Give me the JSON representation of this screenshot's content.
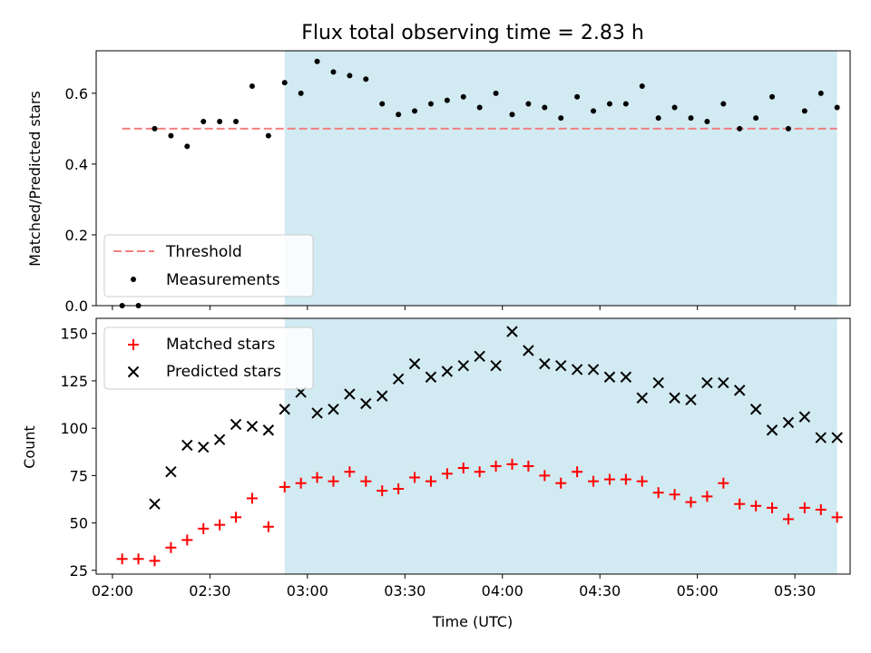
{
  "title": "Flux total observing time = 2.83 h",
  "colors": {
    "threshold": "#f08080",
    "measurement": "#000000",
    "matched": "#ff0000",
    "predicted": "#000000",
    "shade": "#add8e6"
  },
  "chart_data": [
    {
      "type": "scatter",
      "ylabel": "Matched/Predicted stars",
      "xlabel": "",
      "ylim": [
        0,
        0.72
      ],
      "yticks": [
        0.0,
        0.2,
        0.4,
        0.6
      ],
      "ytick_labels": [
        "0.0",
        "0.2",
        "0.4",
        "0.6"
      ],
      "shaded_interval": [
        "02:53",
        "05:43"
      ],
      "legend": {
        "placement": "lower-left",
        "entries": [
          "Threshold",
          "Measurements"
        ]
      },
      "threshold": {
        "name": "Threshold",
        "value": 0.5,
        "style": "dashed",
        "x_range": [
          "02:03",
          "05:43"
        ]
      },
      "series": [
        {
          "name": "Measurements",
          "x": [
            "02:03",
            "02:08",
            "02:13",
            "02:18",
            "02:23",
            "02:28",
            "02:33",
            "02:38",
            "02:43",
            "02:48",
            "02:53",
            "02:58",
            "03:03",
            "03:08",
            "03:13",
            "03:18",
            "03:23",
            "03:28",
            "03:33",
            "03:38",
            "03:43",
            "03:48",
            "03:53",
            "03:58",
            "04:03",
            "04:08",
            "04:13",
            "04:18",
            "04:23",
            "04:28",
            "04:33",
            "04:38",
            "04:43",
            "04:48",
            "04:53",
            "04:58",
            "05:03",
            "05:08",
            "05:13",
            "05:18",
            "05:23",
            "05:28",
            "05:33",
            "05:38",
            "05:43"
          ],
          "y": [
            0.0,
            0.0,
            0.5,
            0.48,
            0.45,
            0.52,
            0.52,
            0.52,
            0.62,
            0.48,
            0.63,
            0.6,
            0.69,
            0.66,
            0.65,
            0.64,
            0.57,
            0.54,
            0.55,
            0.57,
            0.58,
            0.59,
            0.56,
            0.6,
            0.54,
            0.57,
            0.56,
            0.53,
            0.59,
            0.55,
            0.57,
            0.57,
            0.62,
            0.53,
            0.56,
            0.53,
            0.52,
            0.57,
            0.5,
            0.53,
            0.59,
            0.5,
            0.55,
            0.6,
            0.56
          ]
        }
      ]
    },
    {
      "type": "scatter",
      "ylabel": "Count",
      "xlabel": "Time (UTC)",
      "ylim": [
        23,
        158
      ],
      "yticks": [
        25,
        50,
        75,
        100,
        125,
        150
      ],
      "ytick_labels": [
        "25",
        "50",
        "75",
        "100",
        "125",
        "150"
      ],
      "xticks": [
        "02:00",
        "02:30",
        "03:00",
        "03:30",
        "04:00",
        "04:30",
        "05:00",
        "05:30"
      ],
      "xlim": [
        "01:55",
        "05:47"
      ],
      "shaded_interval": [
        "02:53",
        "05:43"
      ],
      "legend": {
        "placement": "upper-left",
        "entries": [
          "Matched stars",
          "Predicted stars"
        ]
      },
      "series": [
        {
          "name": "Matched stars",
          "marker": "plus",
          "x": [
            "02:03",
            "02:08",
            "02:13",
            "02:18",
            "02:23",
            "02:28",
            "02:33",
            "02:38",
            "02:43",
            "02:48",
            "02:53",
            "02:58",
            "03:03",
            "03:08",
            "03:13",
            "03:18",
            "03:23",
            "03:28",
            "03:33",
            "03:38",
            "03:43",
            "03:48",
            "03:53",
            "03:58",
            "04:03",
            "04:08",
            "04:13",
            "04:18",
            "04:23",
            "04:28",
            "04:33",
            "04:38",
            "04:43",
            "04:48",
            "04:53",
            "04:58",
            "05:03",
            "05:08",
            "05:13",
            "05:18",
            "05:23",
            "05:28",
            "05:33",
            "05:38",
            "05:43"
          ],
          "y": [
            31,
            31,
            30,
            37,
            41,
            47,
            49,
            53,
            63,
            48,
            69,
            71,
            74,
            72,
            77,
            72,
            67,
            68,
            74,
            72,
            76,
            79,
            77,
            80,
            81,
            80,
            75,
            71,
            77,
            72,
            73,
            73,
            72,
            66,
            65,
            61,
            64,
            71,
            60,
            59,
            58,
            52,
            58,
            57,
            53
          ]
        },
        {
          "name": "Predicted stars",
          "marker": "x",
          "x": [
            "02:13",
            "02:18",
            "02:23",
            "02:28",
            "02:33",
            "02:38",
            "02:43",
            "02:48",
            "02:53",
            "02:58",
            "03:03",
            "03:08",
            "03:13",
            "03:18",
            "03:23",
            "03:28",
            "03:33",
            "03:38",
            "03:43",
            "03:48",
            "03:53",
            "03:58",
            "04:03",
            "04:08",
            "04:13",
            "04:18",
            "04:23",
            "04:28",
            "04:33",
            "04:38",
            "04:43",
            "04:48",
            "04:53",
            "04:58",
            "05:03",
            "05:08",
            "05:13",
            "05:18",
            "05:23",
            "05:28",
            "05:33",
            "05:38",
            "05:43"
          ],
          "y": [
            60,
            77,
            91,
            90,
            94,
            102,
            101,
            99,
            110,
            119,
            108,
            110,
            118,
            113,
            117,
            126,
            134,
            127,
            130,
            133,
            138,
            133,
            151,
            141,
            134,
            133,
            131,
            131,
            127,
            127,
            116,
            124,
            116,
            115,
            124,
            124,
            120,
            110,
            99,
            103,
            106,
            95,
            95
          ]
        }
      ]
    }
  ]
}
